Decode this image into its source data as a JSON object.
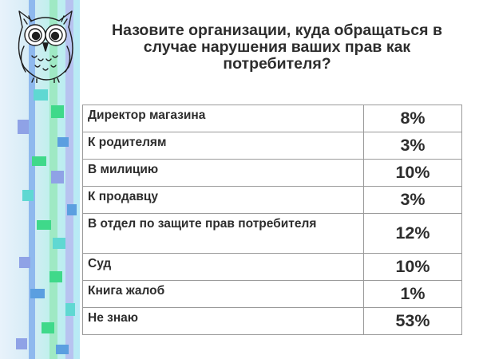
{
  "slide": {
    "title": "Назовите организации, куда обращаться в случае нарушения ваших прав как потребителя?"
  },
  "colors": {
    "text": "#2d2d2d",
    "table_border": "#9a9a9a",
    "band_blue": "#5b9fe0",
    "band_green": "#3fd98a",
    "band_lavender": "#8fa2e6",
    "band_teal": "#5fd8d2"
  },
  "decoration": {
    "owl_icon": "owl-illustration",
    "side_band": "mosaic-stripe-band"
  },
  "table": {
    "rows": [
      {
        "answer": "Директор магазина",
        "percent": "8%"
      },
      {
        "answer": "К родителям",
        "percent": "3%"
      },
      {
        "answer": "В милицию",
        "percent": "10%"
      },
      {
        "answer": "К продавцу",
        "percent": "3%"
      },
      {
        "answer": "В отдел по защите прав потребителя",
        "percent": "12%"
      },
      {
        "answer": "Суд",
        "percent": "10%"
      },
      {
        "answer": "Книга жалоб",
        "percent": "1%"
      },
      {
        "answer": "Не знаю",
        "percent": "53%"
      }
    ]
  }
}
